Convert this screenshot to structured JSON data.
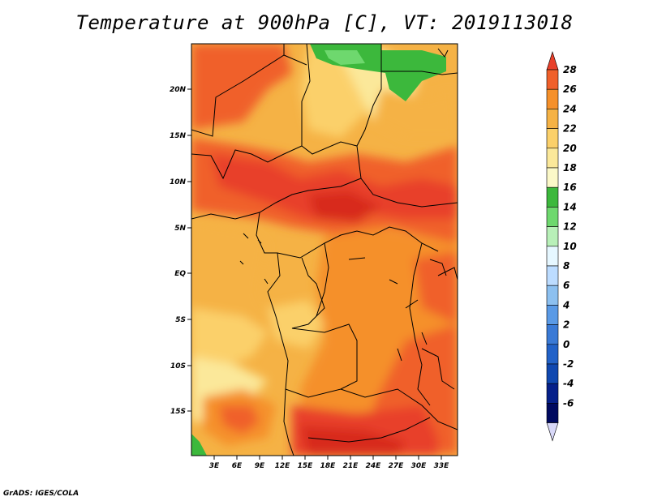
{
  "title": "Temperature at 900hPa [C], VT: 2019113018",
  "credit": "GrADS: IGES/COLA",
  "map": {
    "lat_ticks": [
      "20N",
      "15N",
      "10N",
      "5N",
      "EQ",
      "5S",
      "10S",
      "15S"
    ],
    "lon_ticks": [
      "3E",
      "6E",
      "9E",
      "12E",
      "15E",
      "18E",
      "21E",
      "24E",
      "27E",
      "30E",
      "33E"
    ]
  },
  "legend": {
    "labels": [
      "28",
      "26",
      "24",
      "22",
      "20",
      "18",
      "16",
      "14",
      "12",
      "10",
      "8",
      "6",
      "4",
      "2",
      "0",
      "-2",
      "-4",
      "-6"
    ],
    "colors": [
      "#e8402a",
      "#f0602a",
      "#f5902a",
      "#f5b245",
      "#fbd06a",
      "#fbe89a",
      "#fbf8c8",
      "#3cb83c",
      "#6ed86e",
      "#b8f0b8",
      "#e6f7ff",
      "#bcdcff",
      "#8cc0f0",
      "#5a9ae6",
      "#3a7ad6",
      "#2262c8",
      "#1048b0",
      "#06208a",
      "#000a60",
      "#d8d8f8"
    ]
  }
}
